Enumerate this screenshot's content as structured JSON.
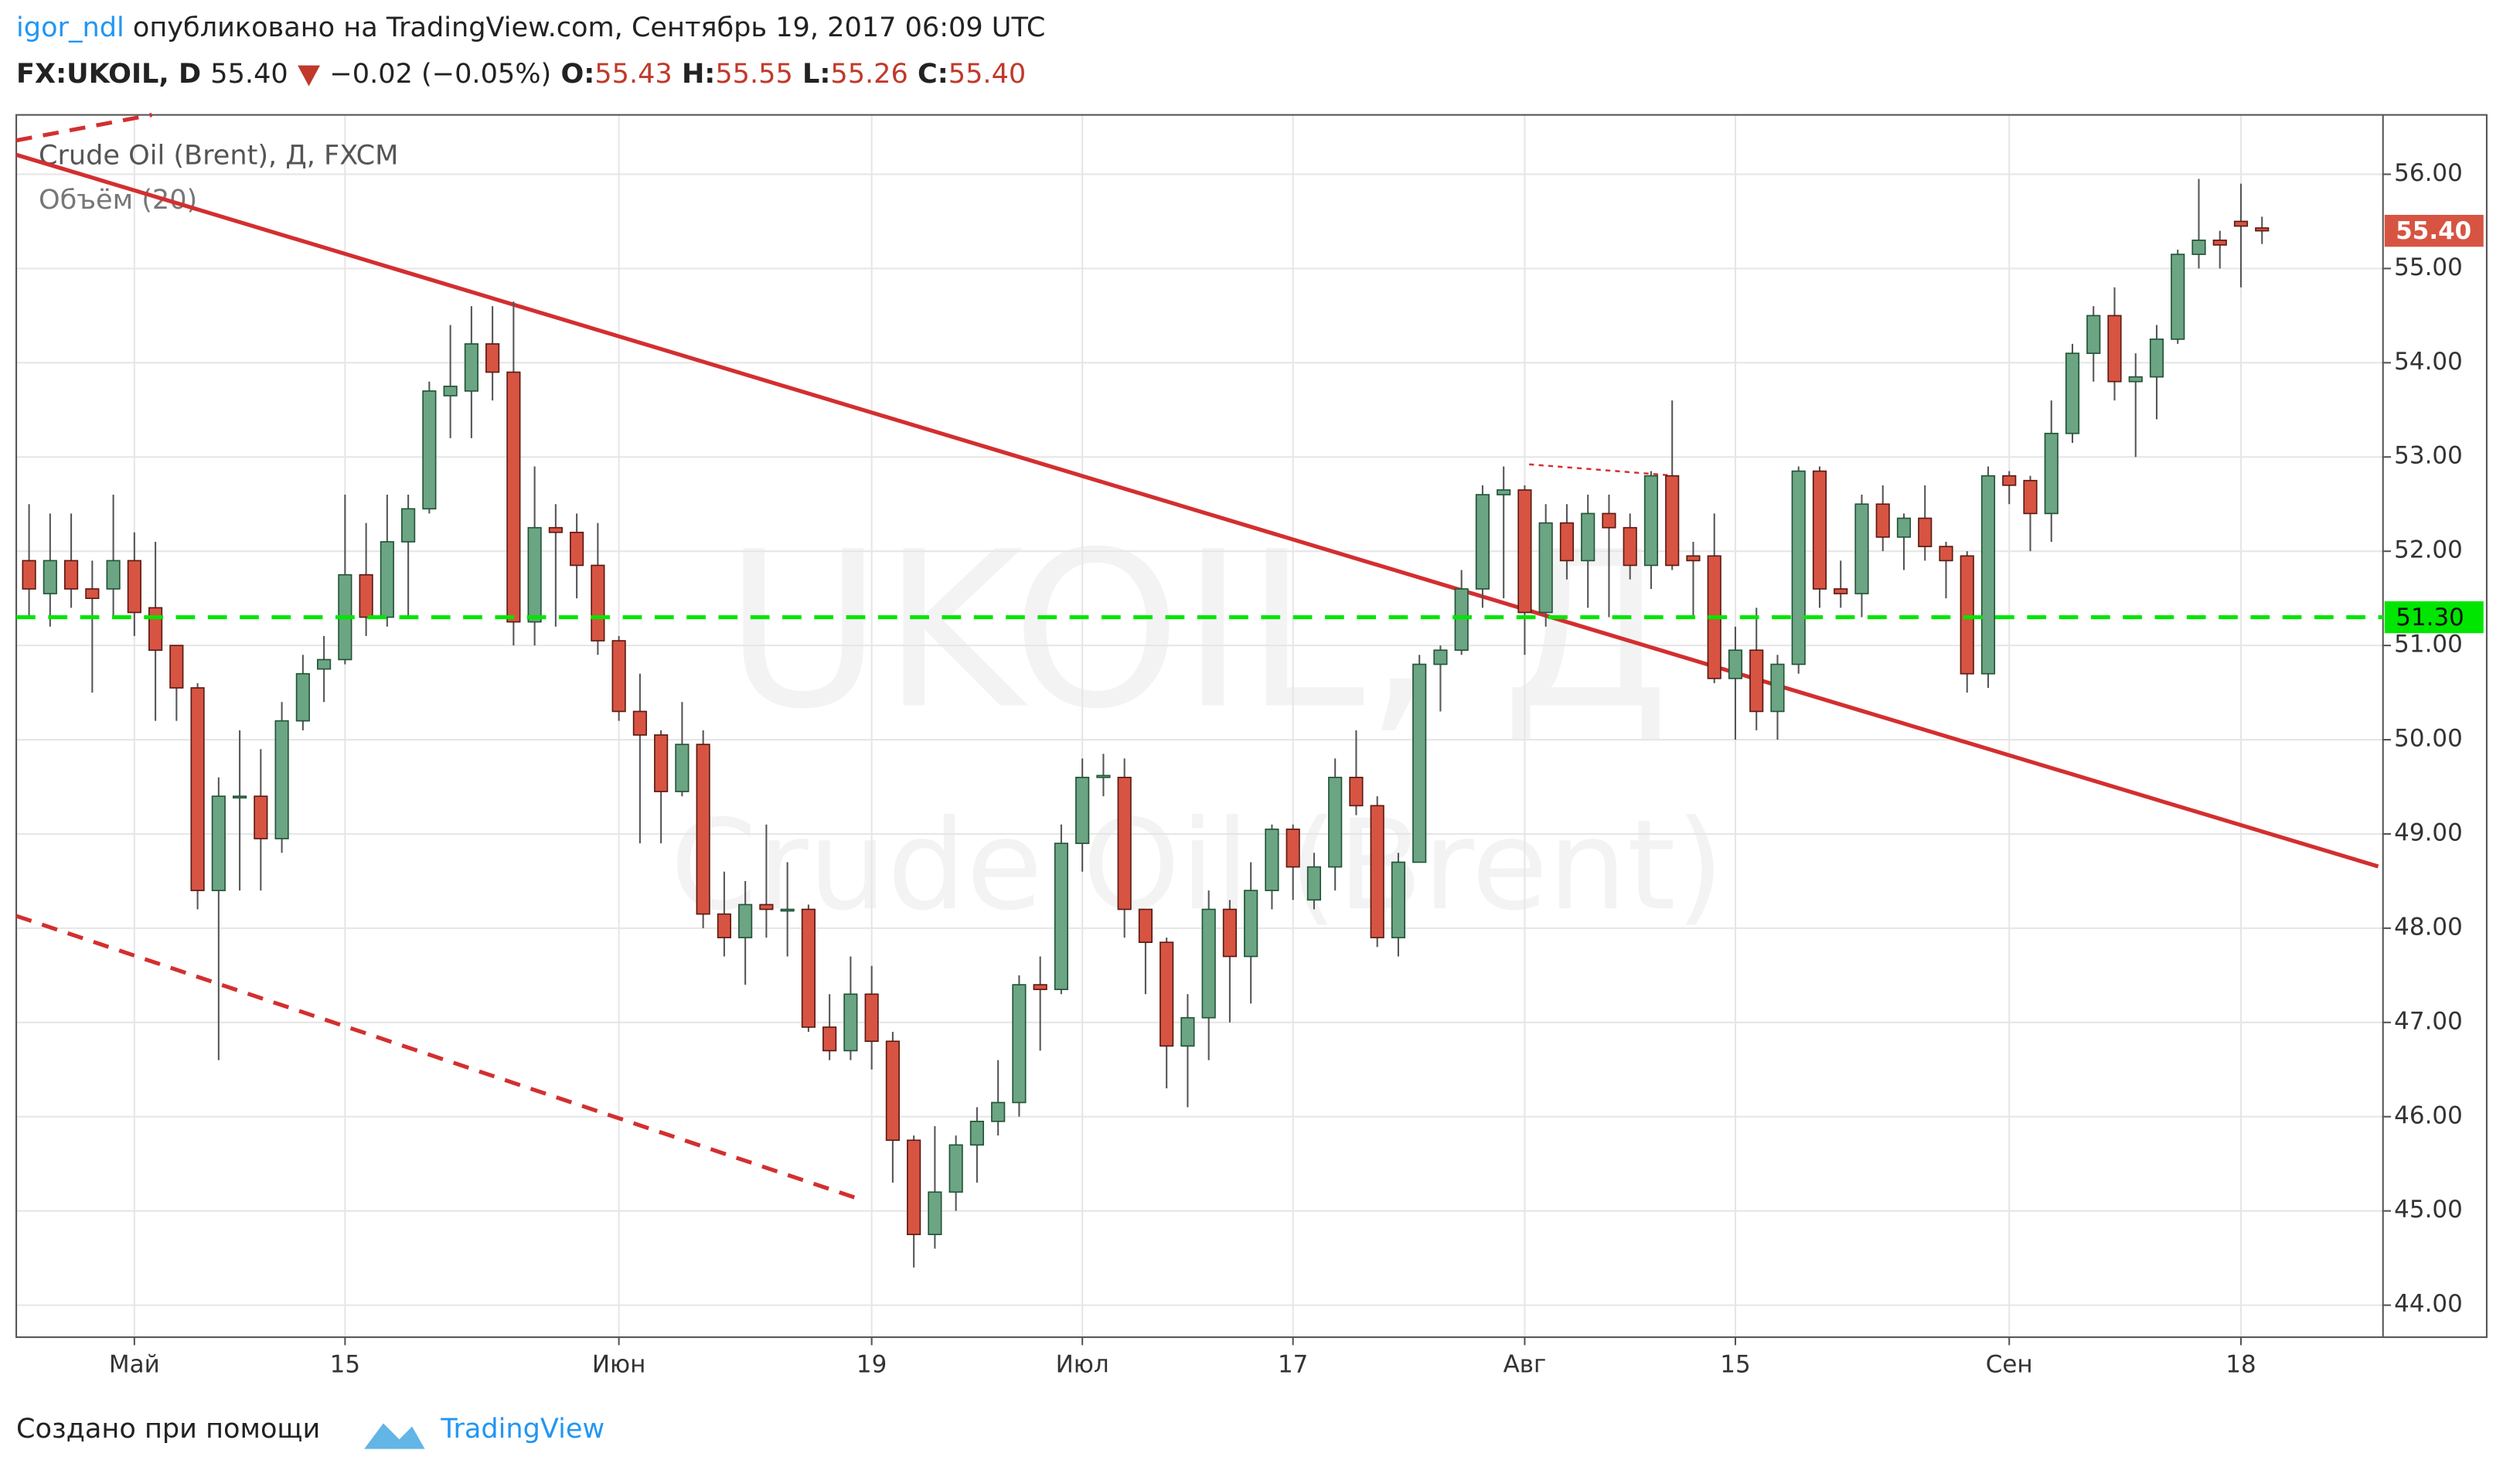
{
  "header": {
    "author": "igor_ndl",
    "published": "опубликовано на TradingView.com, Сентябрь 19, 2017 06:09 UTC",
    "symbol": "FX:UKOIL, D",
    "last": "55.40",
    "change": "−0.02 (−0.05%)",
    "open_label": "O:",
    "open": "55.43",
    "high_label": "H:",
    "high": "55.55",
    "low_label": "L:",
    "low": "55.26",
    "close_label": "C:",
    "close": "55.40"
  },
  "footer": {
    "text": "Создано при помощи",
    "brand": "TradingView"
  },
  "chart_data": {
    "type": "candlestick",
    "legend": [
      "Crude Oil (Brent), Д, FXCM",
      "Объём (20)"
    ],
    "watermark": [
      "UKOIL, Д",
      "Crude Oil (Brent)"
    ],
    "up_color": "#6ba583",
    "down_color": "#d75442",
    "categories": [
      null,
      null,
      null,
      null,
      null,
      "Май",
      null,
      null,
      null,
      null,
      null,
      null,
      null,
      null,
      null,
      "15",
      null,
      null,
      null,
      null,
      null,
      null,
      null,
      null,
      null,
      null,
      null,
      null,
      "Июн",
      null,
      null,
      null,
      null,
      null,
      null,
      null,
      null,
      null,
      null,
      null,
      "19",
      null,
      null,
      null,
      null,
      null,
      null,
      null,
      null,
      null,
      "Июл",
      null,
      null,
      null,
      null,
      null,
      null,
      null,
      null,
      null,
      "17",
      null,
      null,
      null,
      null,
      null,
      null,
      null,
      null,
      null,
      null,
      "Авг",
      null,
      null,
      null,
      null,
      null,
      null,
      null,
      null,
      null,
      "15",
      null,
      null,
      null,
      null,
      null,
      null,
      null,
      null,
      null,
      null,
      null,
      null,
      "Сен",
      null,
      null,
      null,
      null,
      null,
      null,
      null,
      null,
      null,
      null,
      "18",
      null
    ],
    "open": [
      51.9,
      51.55,
      51.9,
      51.6,
      51.6,
      51.9,
      51.4,
      51.0,
      50.55,
      48.4,
      49.4,
      49.4,
      48.95,
      50.2,
      50.75,
      50.85,
      51.75,
      51.3,
      52.1,
      52.45,
      53.65,
      53.7,
      54.2,
      53.9,
      51.25,
      52.25,
      52.2,
      51.85,
      51.05,
      50.3,
      50.05,
      49.45,
      49.95,
      48.15,
      47.9,
      48.25,
      48.2,
      48.2,
      46.95,
      46.7,
      47.3,
      46.8,
      45.75,
      44.75,
      45.2,
      45.7,
      45.95,
      46.15,
      47.4,
      47.35,
      48.9,
      49.6,
      49.6,
      48.2,
      47.85,
      46.75,
      47.05,
      48.2,
      47.7,
      48.4,
      49.05,
      48.3,
      48.65,
      49.6,
      49.3,
      47.9,
      48.7,
      50.8,
      50.95,
      51.6,
      52.6,
      52.65,
      51.35,
      52.3,
      51.9,
      52.4,
      52.25,
      51.85,
      52.8,
      51.95,
      51.95,
      50.65,
      50.95,
      50.3,
      50.8,
      52.85,
      51.6,
      51.55,
      52.5,
      52.15,
      52.35,
      52.05,
      51.95,
      50.7,
      52.8,
      52.75,
      52.4,
      53.25,
      54.1,
      54.5,
      53.8,
      53.85,
      54.25,
      55.15,
      55.3,
      55.5,
      55.43
    ],
    "high": [
      52.5,
      52.4,
      52.4,
      51.9,
      52.6,
      52.2,
      52.1,
      51.0,
      50.6,
      49.6,
      50.1,
      49.9,
      50.4,
      50.9,
      51.1,
      52.6,
      52.3,
      52.6,
      52.6,
      53.8,
      54.4,
      54.6,
      54.6,
      54.65,
      52.9,
      52.5,
      52.4,
      52.3,
      51.1,
      50.7,
      50.1,
      50.4,
      50.1,
      48.6,
      48.5,
      49.1,
      48.7,
      48.25,
      47.3,
      47.7,
      47.6,
      46.9,
      45.8,
      45.9,
      45.8,
      46.1,
      46.6,
      47.5,
      47.7,
      49.1,
      49.8,
      49.85,
      49.8,
      48.2,
      47.9,
      47.3,
      48.4,
      48.3,
      48.7,
      49.1,
      49.1,
      48.8,
      49.8,
      50.1,
      49.4,
      48.8,
      50.9,
      51.0,
      51.8,
      52.7,
      52.9,
      52.7,
      52.5,
      52.5,
      52.6,
      52.6,
      52.4,
      52.85,
      53.6,
      52.1,
      52.4,
      51.2,
      51.4,
      50.9,
      52.9,
      52.9,
      51.9,
      52.6,
      52.7,
      52.4,
      52.7,
      52.1,
      52.0,
      52.9,
      52.85,
      52.8,
      53.6,
      54.2,
      54.6,
      54.8,
      54.1,
      54.4,
      55.2,
      55.95,
      55.4,
      55.9,
      55.55
    ],
    "low": [
      51.3,
      51.2,
      51.4,
      50.5,
      51.3,
      51.1,
      50.2,
      50.2,
      48.2,
      46.6,
      48.4,
      48.4,
      48.8,
      50.1,
      50.4,
      50.8,
      51.1,
      51.2,
      51.3,
      52.4,
      53.2,
      53.2,
      53.6,
      51.0,
      51.0,
      51.2,
      51.5,
      50.9,
      50.2,
      48.9,
      48.9,
      49.4,
      48.0,
      47.7,
      47.4,
      47.9,
      47.7,
      46.9,
      46.6,
      46.6,
      46.5,
      45.3,
      44.4,
      44.6,
      45.0,
      45.3,
      45.8,
      46.0,
      46.7,
      47.3,
      48.6,
      49.4,
      47.9,
      47.3,
      46.3,
      46.1,
      46.6,
      47.0,
      47.2,
      48.2,
      48.3,
      48.2,
      48.4,
      49.2,
      47.8,
      47.7,
      48.7,
      50.3,
      50.9,
      51.4,
      51.5,
      50.9,
      51.2,
      51.7,
      51.4,
      51.3,
      51.7,
      51.6,
      51.8,
      51.3,
      50.6,
      50.0,
      50.1,
      50.0,
      50.7,
      51.4,
      51.4,
      51.3,
      52.0,
      51.8,
      51.9,
      51.5,
      50.5,
      50.55,
      52.5,
      52.0,
      52.1,
      53.15,
      53.8,
      53.6,
      53.0,
      53.4,
      54.2,
      55.0,
      55.0,
      54.8,
      55.26
    ],
    "close": [
      51.6,
      51.9,
      51.6,
      51.5,
      51.9,
      51.35,
      50.95,
      50.55,
      48.4,
      49.4,
      49.4,
      48.95,
      50.2,
      50.7,
      50.85,
      51.75,
      51.3,
      52.1,
      52.45,
      53.7,
      53.75,
      54.2,
      53.9,
      51.25,
      52.25,
      52.2,
      51.85,
      51.05,
      50.3,
      50.05,
      49.45,
      49.95,
      48.15,
      47.9,
      48.25,
      48.2,
      48.2,
      46.95,
      46.7,
      47.3,
      46.8,
      45.75,
      44.75,
      45.2,
      45.7,
      45.95,
      46.15,
      47.4,
      47.35,
      48.9,
      49.6,
      49.62,
      48.2,
      47.85,
      46.75,
      47.05,
      48.2,
      47.7,
      48.4,
      49.05,
      48.65,
      48.65,
      49.6,
      49.3,
      47.9,
      48.7,
      50.8,
      50.95,
      51.6,
      52.6,
      52.65,
      51.35,
      52.3,
      51.9,
      52.4,
      52.25,
      51.85,
      52.8,
      51.85,
      51.9,
      50.65,
      50.95,
      50.3,
      50.8,
      52.85,
      51.6,
      51.55,
      52.5,
      52.15,
      52.35,
      52.05,
      51.9,
      50.7,
      52.8,
      52.7,
      52.4,
      53.25,
      54.1,
      54.5,
      53.8,
      53.85,
      54.25,
      55.15,
      55.3,
      55.25,
      55.45,
      55.4
    ],
    "ylim": [
      43.66,
      56.63
    ],
    "yticks": [
      {
        "value": 44,
        "label": "44.00"
      },
      {
        "value": 45,
        "label": "45.00"
      },
      {
        "value": 46,
        "label": "46.00"
      },
      {
        "value": 47,
        "label": "47.00"
      },
      {
        "value": 48,
        "label": "48.00"
      },
      {
        "value": 49,
        "label": "49.00"
      },
      {
        "value": 50,
        "label": "50.00"
      },
      {
        "value": 51,
        "label": "51.00"
      },
      {
        "value": 52,
        "label": "52.00"
      },
      {
        "value": 53,
        "label": "53.00"
      },
      {
        "value": 54,
        "label": "54.00"
      },
      {
        "value": 55,
        "label": "55.00"
      },
      {
        "value": 56,
        "label": "56.00"
      }
    ],
    "grid": true,
    "last_price": {
      "value": 55.4,
      "label": "55.40",
      "color": "#d75442"
    },
    "hline": {
      "value": 51.3,
      "label": "51.30",
      "color": "#00e600"
    }
  }
}
